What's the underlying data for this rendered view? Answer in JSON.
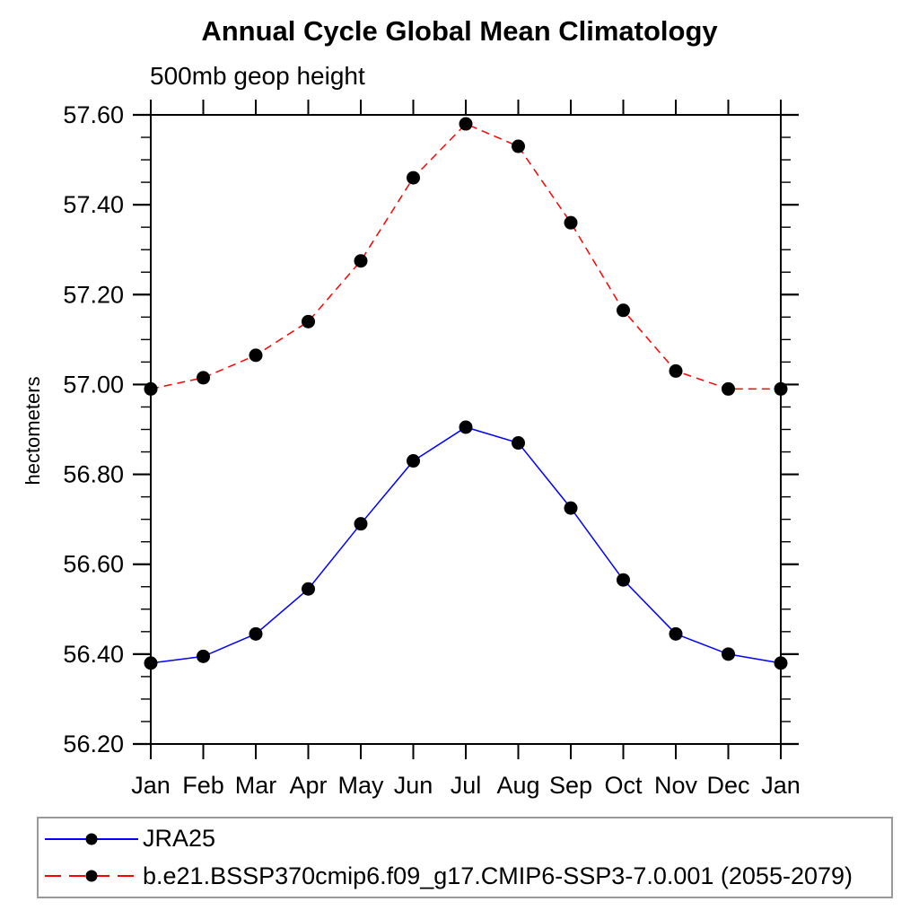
{
  "title": "Annual Cycle Global Mean Climatology",
  "subtitle": "500mb geop height",
  "ylabel": "hectometers",
  "chart_data": {
    "type": "line",
    "categories": [
      "Jan",
      "Feb",
      "Mar",
      "Apr",
      "May",
      "Jun",
      "Jul",
      "Aug",
      "Sep",
      "Oct",
      "Nov",
      "Dec",
      "Jan"
    ],
    "series": [
      {
        "name": "JRA25",
        "color": "#0000ff",
        "line_style": "solid",
        "marker": "filled-circle",
        "marker_color": "#000000",
        "values": [
          56.38,
          56.395,
          56.445,
          56.545,
          56.69,
          56.83,
          56.905,
          56.87,
          56.725,
          56.565,
          56.445,
          56.4,
          56.38
        ]
      },
      {
        "name": "b.e21.BSSP370cmip6.f09_g17.CMIP6-SSP3-7.0.001 (2055-2079)",
        "color": "#ff0000",
        "line_style": "dashed",
        "marker": "filled-circle",
        "marker_color": "#000000",
        "values": [
          56.99,
          57.015,
          57.065,
          57.14,
          57.275,
          57.46,
          57.58,
          57.53,
          57.36,
          57.165,
          57.03,
          56.99,
          56.99
        ]
      }
    ],
    "xlabel": "",
    "ylabel": "hectometers",
    "ylim": [
      56.2,
      57.6
    ],
    "ytick_major_interval": 0.2,
    "ytick_minor_interval": 0.05,
    "ytick_labels": [
      "56.20",
      "56.40",
      "56.60",
      "56.80",
      "57.00",
      "57.20",
      "57.40",
      "57.60"
    ],
    "grid": false,
    "legend_position": "bottom",
    "frame": "box-with-outward-ticks"
  }
}
